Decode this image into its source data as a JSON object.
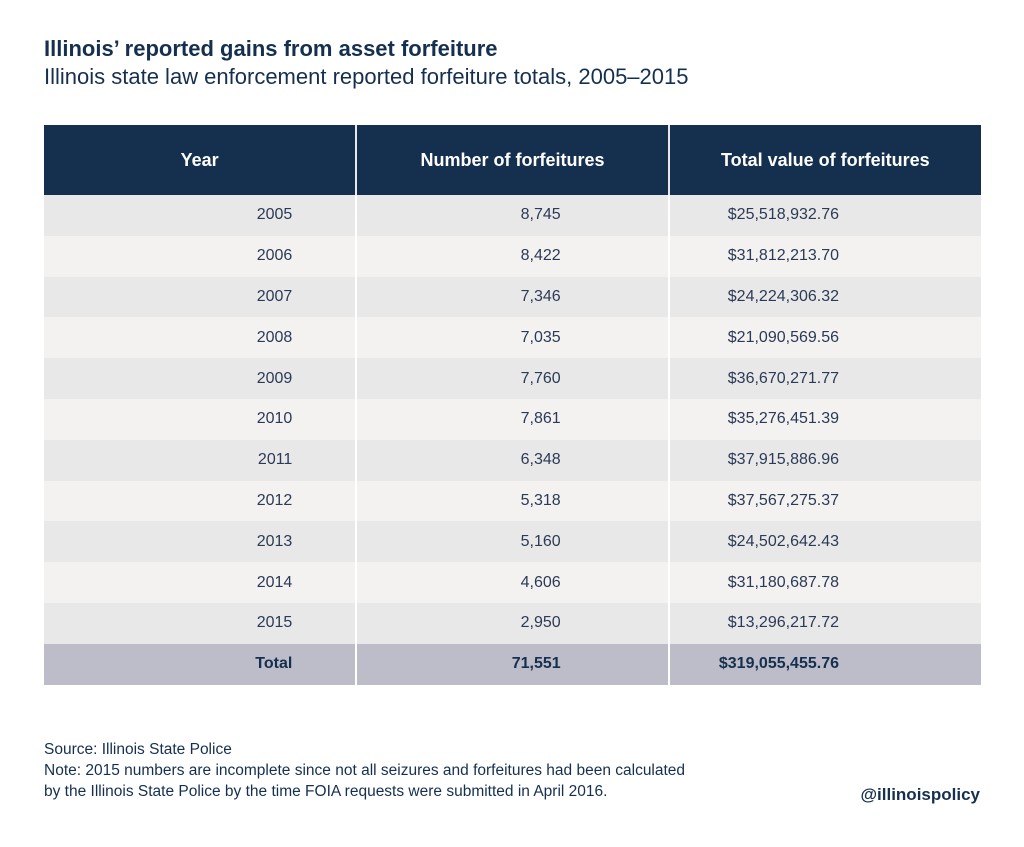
{
  "header": {
    "title": "Illinois’ reported gains from asset forfeiture",
    "subtitle": "Illinois state law enforcement reported forfeiture totals, 2005–2015"
  },
  "chart_data": {
    "type": "table",
    "columns": [
      "Year",
      "Number of forfeitures",
      "Total value of forfeitures"
    ],
    "rows": [
      [
        "2005",
        "8,745",
        "$25,518,932.76"
      ],
      [
        "2006",
        "8,422",
        "$31,812,213.70"
      ],
      [
        "2007",
        "7,346",
        "$24,224,306.32"
      ],
      [
        "2008",
        "7,035",
        "$21,090,569.56"
      ],
      [
        "2009",
        "7,760",
        "$36,670,271.77"
      ],
      [
        "2010",
        "7,861",
        "$35,276,451.39"
      ],
      [
        "2011",
        "6,348",
        "$37,915,886.96"
      ],
      [
        "2012",
        "5,318",
        "$37,567,275.37"
      ],
      [
        "2013",
        "5,160",
        "$24,502,642.43"
      ],
      [
        "2014",
        "4,606",
        "$31,180,687.78"
      ],
      [
        "2015",
        "2,950",
        "$13,296,217.72"
      ]
    ],
    "total": [
      "Total",
      "71,551",
      "$319,055,455.76"
    ]
  },
  "footer": {
    "source": "Source: Illinois State Police",
    "note_line1": "Note: 2015 numbers are incomplete since not all seizures and forfeitures had been calculated",
    "note_line2": "by the Illinois State Police by the time FOIA requests were submitted in April 2016.",
    "handle": "@illinoispolicy"
  },
  "colors": {
    "header_bg": "#15304f",
    "row_odd": "#e9e8e9",
    "row_even": "#f3f2f1",
    "total_bg": "#bdbdc9"
  }
}
